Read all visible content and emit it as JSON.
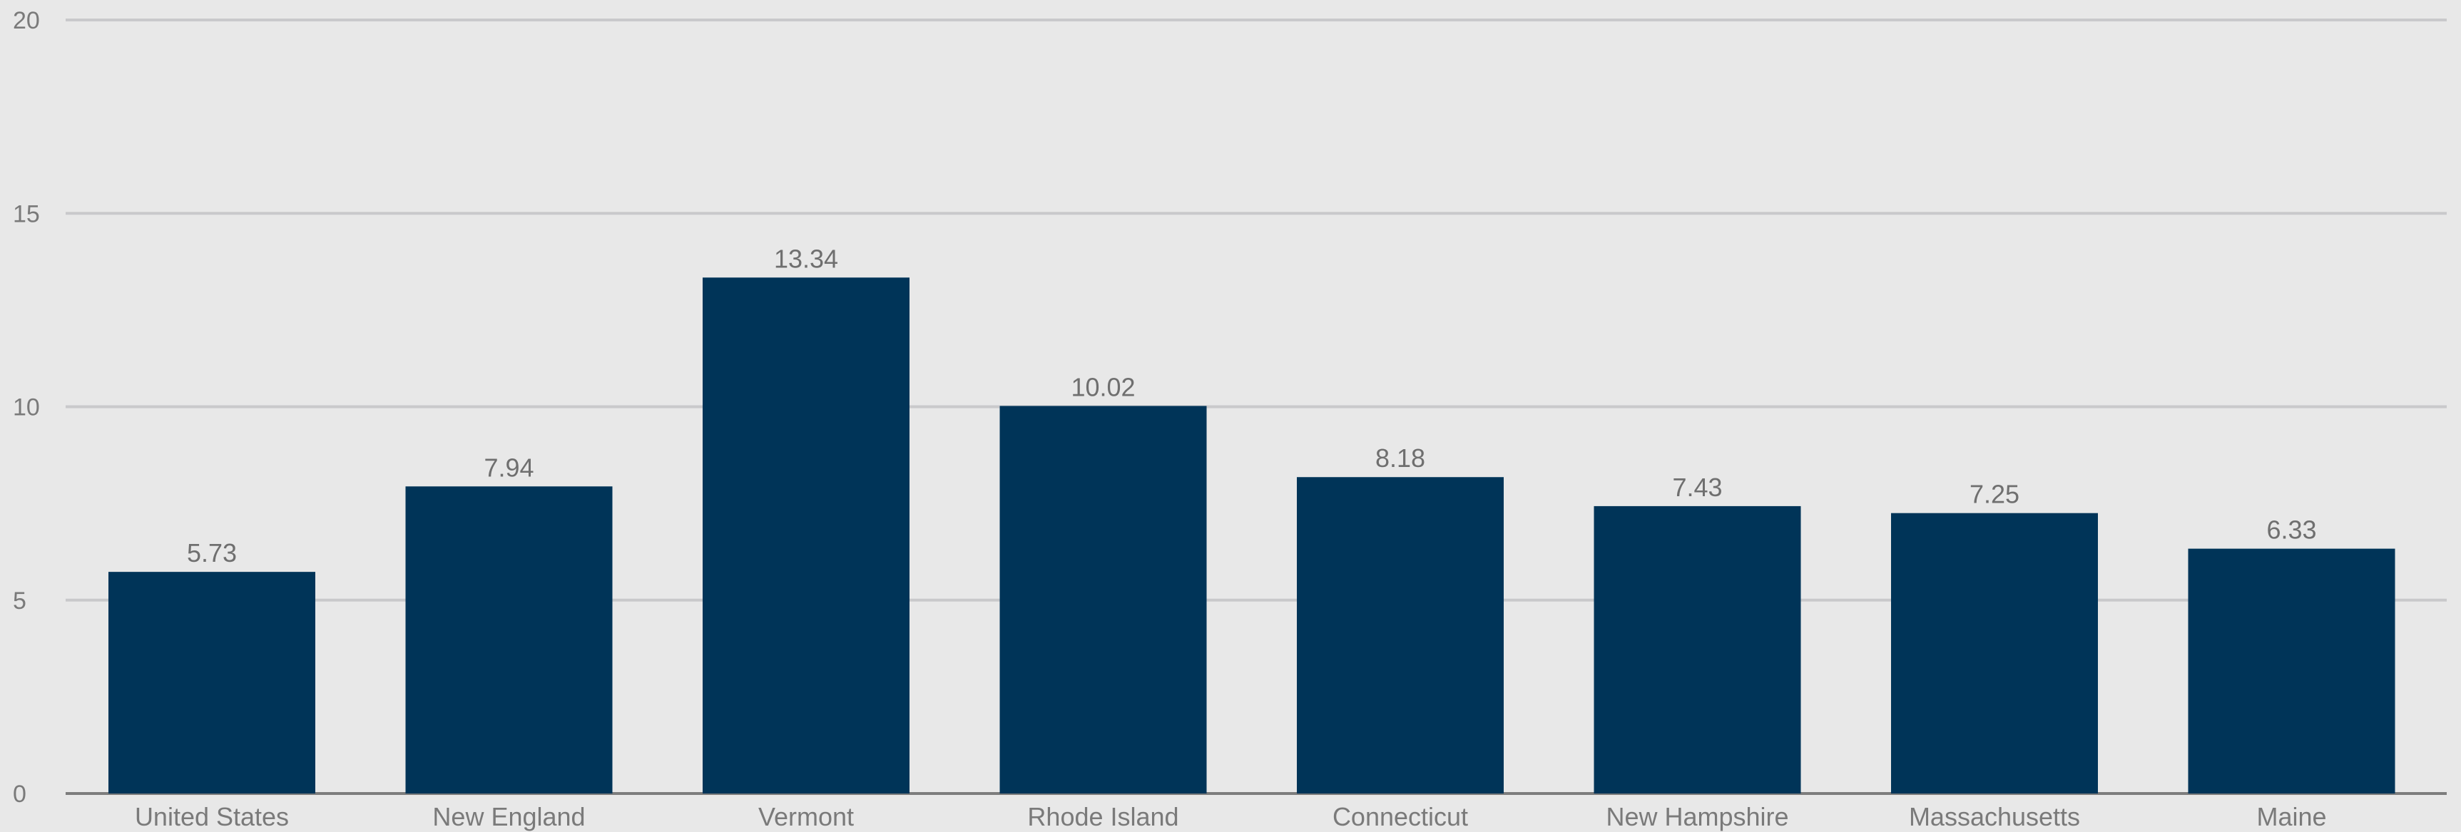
{
  "chart_data": {
    "type": "bar",
    "title": "",
    "xlabel": "",
    "ylabel": "",
    "categories": [
      "United States",
      "New England",
      "Vermont",
      "Rhode Island",
      "Connecticut",
      "New Hampshire",
      "Massachusetts",
      "Maine"
    ],
    "values": [
      5.73,
      7.94,
      13.34,
      10.02,
      8.18,
      7.43,
      7.25,
      6.33
    ],
    "data_labels": [
      "5.73",
      "7.94",
      "13.34",
      "10.02",
      "8.18",
      "7.43",
      "7.25",
      "6.33"
    ],
    "ylim": [
      0,
      20
    ],
    "yticks": [
      0,
      5,
      10,
      15,
      20
    ],
    "grid": true,
    "legend": "none",
    "colors": {
      "bar": "#003458",
      "grid": "#c9c9cb",
      "background": "#e8e8e8",
      "text": "#7a7a7a"
    }
  }
}
